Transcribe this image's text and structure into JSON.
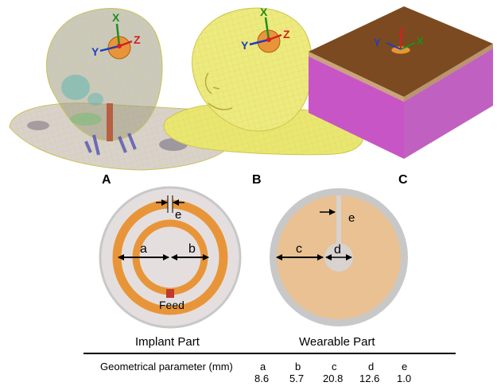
{
  "panels": {
    "a": {
      "label": "A",
      "axes": {
        "x": "X",
        "y": "Y",
        "z": "Z"
      }
    },
    "b": {
      "label": "B",
      "axes": {
        "x": "X",
        "y": "Y",
        "z": "Z"
      }
    },
    "c": {
      "label": "C",
      "axes": {
        "x": "X",
        "y": "Y",
        "z": "Z"
      }
    }
  },
  "implant": {
    "title": "Implant Part",
    "dims": {
      "a": "a",
      "b": "b",
      "e": "e"
    },
    "feed_label": "Feed"
  },
  "wearable": {
    "title": "Wearable Part",
    "dims": {
      "c": "c",
      "d": "d",
      "e": "e"
    }
  },
  "table": {
    "header_label": "Geometrical parameter (mm)",
    "params": [
      "a",
      "b",
      "c",
      "d",
      "e"
    ],
    "values": [
      "8.6",
      "5.7",
      "20.8",
      "12.6",
      "1.0"
    ]
  },
  "colors": {
    "ring": "#E8953A",
    "patch": "#E9C192",
    "disk": "#D8D2D0",
    "rim": "#C8C8C8",
    "feed": "#C0392B",
    "head_yellow": "#E9E772",
    "box_top": "#7B4A20",
    "box_side": "#C855C5",
    "axis_x": "#1E8F1E",
    "axis_y": "#1F3FBF",
    "axis_z": "#D42020"
  }
}
